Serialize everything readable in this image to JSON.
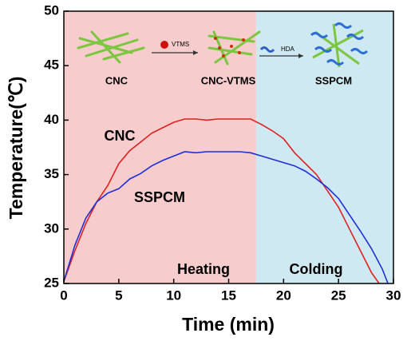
{
  "chart_data": {
    "type": "line",
    "xlabel": "Time (min)",
    "ylabel": "Temperature(℃)",
    "xlim": [
      0,
      30
    ],
    "ylim": [
      25,
      50
    ],
    "xticks": [
      0,
      5,
      10,
      15,
      20,
      25,
      30
    ],
    "yticks": [
      25,
      30,
      35,
      40,
      45,
      50
    ],
    "regions": [
      {
        "label": "Heating",
        "from": 0,
        "to": 17.5,
        "color": "#f7cccc"
      },
      {
        "label": "Colding",
        "from": 17.5,
        "to": 30,
        "color": "#cfe9f2"
      }
    ],
    "series": [
      {
        "name": "CNC",
        "color": "#e02020",
        "x": [
          0,
          1,
          2,
          3,
          4,
          5,
          6,
          7,
          8,
          9,
          10,
          11,
          12,
          13,
          14,
          15,
          16,
          17,
          18,
          19,
          20,
          21,
          22,
          23,
          24,
          25,
          26,
          27,
          28,
          28.7
        ],
        "values": [
          25.2,
          28,
          30.5,
          32.5,
          34,
          36,
          37.2,
          38,
          38.8,
          39.3,
          39.8,
          40.1,
          40.1,
          40.0,
          40.1,
          40.1,
          40.1,
          40.1,
          39.6,
          39,
          38.3,
          37,
          36,
          35,
          33.5,
          32,
          30,
          28,
          26,
          25
        ]
      },
      {
        "name": "SSPCM",
        "color": "#1f2fd6",
        "x": [
          0,
          1,
          2,
          3,
          4,
          5,
          6,
          7,
          8,
          9,
          10,
          11,
          12,
          13,
          14,
          15,
          16,
          17,
          18,
          19,
          20,
          21,
          22,
          23,
          24,
          25,
          26,
          27,
          28,
          29,
          29.5
        ],
        "values": [
          25.2,
          28.5,
          31,
          32.5,
          33.3,
          33.7,
          34.6,
          35.1,
          35.8,
          36.3,
          36.7,
          37.1,
          37,
          37.1,
          37.1,
          37.1,
          37.1,
          37,
          36.7,
          36.4,
          36.1,
          35.8,
          35.3,
          34.6,
          33.8,
          32.8,
          31.3,
          29.8,
          28.2,
          26.3,
          25
        ]
      }
    ],
    "diagram": {
      "steps": [
        "CNC",
        "CNC-VTMS",
        "SSPCM"
      ],
      "reagents": [
        "VTMS",
        "HDA"
      ]
    }
  }
}
